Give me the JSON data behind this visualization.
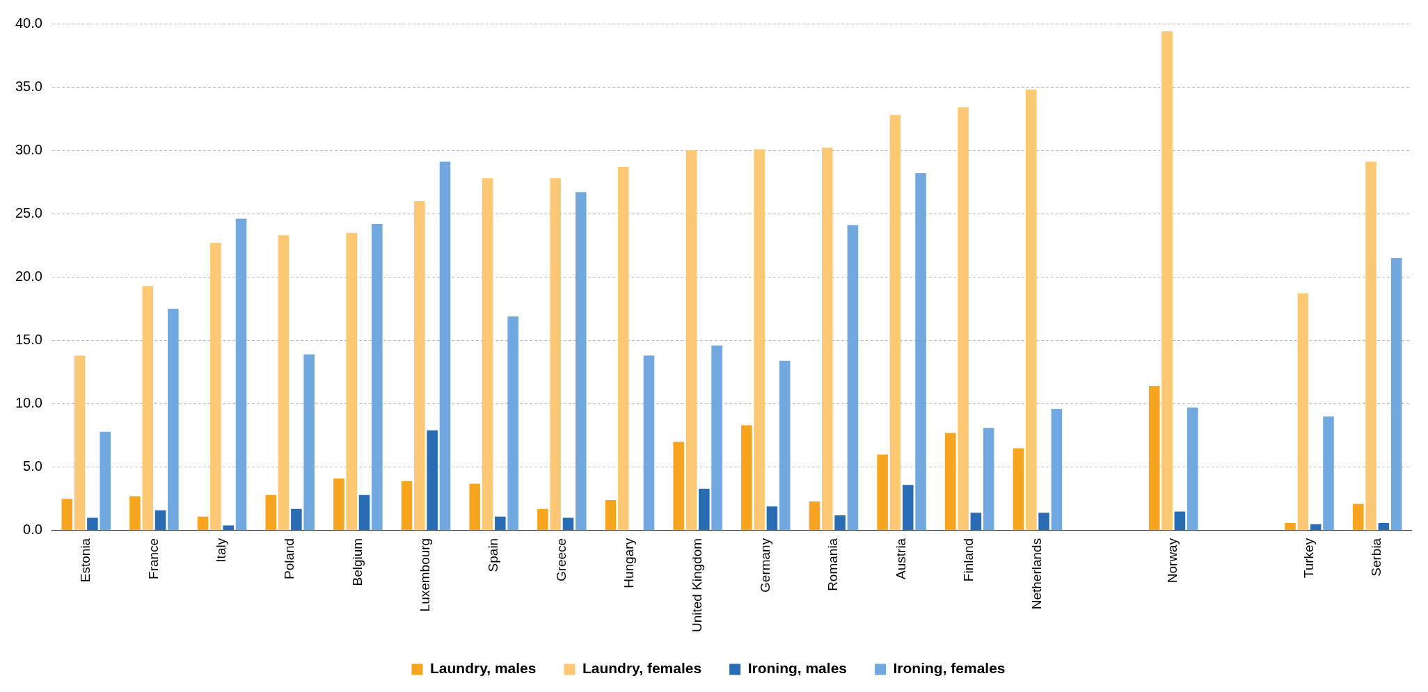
{
  "chart_data": {
    "type": "bar",
    "categories": [
      "Estonia",
      "France",
      "Italy",
      "Poland",
      "Belgium",
      "Luxembourg",
      "Spain",
      "Greece",
      "Hungary",
      "United Kingdom",
      "Germany",
      "Romania",
      "Austria",
      "Finland",
      "Netherlands",
      null,
      "Norway",
      null,
      "Turkey",
      "Serbia"
    ],
    "series": [
      {
        "name": "Laundry, males",
        "color": "#f7a520",
        "values": [
          2.5,
          2.7,
          1.1,
          2.8,
          4.1,
          3.9,
          3.7,
          1.7,
          2.4,
          7.0,
          8.3,
          2.3,
          6.0,
          7.7,
          6.5,
          null,
          11.4,
          null,
          0.6,
          2.1
        ]
      },
      {
        "name": "Laundry, females",
        "color": "#fdc873",
        "values": [
          13.8,
          19.3,
          22.7,
          23.3,
          23.5,
          26.0,
          27.8,
          27.8,
          28.7,
          30.0,
          30.1,
          30.2,
          32.8,
          33.4,
          34.8,
          null,
          39.4,
          null,
          18.7,
          29.1
        ]
      },
      {
        "name": "Ironing, males",
        "color": "#2a6cb4",
        "values": [
          1.0,
          1.6,
          0.4,
          1.7,
          2.8,
          7.9,
          1.1,
          1.0,
          null,
          3.3,
          1.9,
          1.2,
          3.6,
          1.4,
          1.4,
          null,
          1.5,
          null,
          0.5,
          0.6
        ]
      },
      {
        "name": "Ironing, females",
        "color": "#71a8e0",
        "values": [
          7.8,
          17.5,
          24.6,
          13.9,
          24.2,
          29.1,
          16.9,
          26.7,
          13.8,
          14.6,
          13.4,
          24.1,
          28.2,
          8.1,
          9.6,
          null,
          9.7,
          null,
          9.0,
          21.5
        ]
      }
    ],
    "ylim": [
      0,
      40
    ],
    "yticks": [
      {
        "value": 0,
        "label": "0.0"
      },
      {
        "value": 5,
        "label": "5.0"
      },
      {
        "value": 10,
        "label": "10.0"
      },
      {
        "value": 15,
        "label": "15.0"
      },
      {
        "value": 20,
        "label": "20.0"
      },
      {
        "value": 25,
        "label": "25.0"
      },
      {
        "value": 30,
        "label": "30.0"
      },
      {
        "value": 35,
        "label": "35.0"
      },
      {
        "value": 40,
        "label": "40.0"
      }
    ],
    "grid": "y",
    "legend": "bottom"
  }
}
